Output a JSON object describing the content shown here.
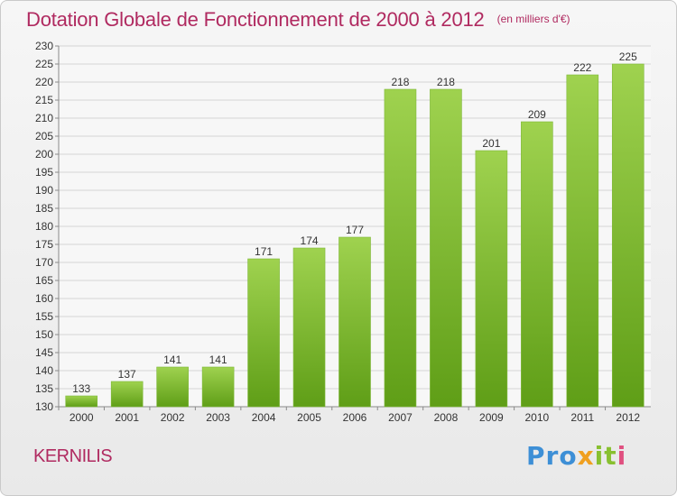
{
  "title": "Dotation Globale de Fonctionnement de 2000 à 2012",
  "unit_note": "(en milliers d'€)",
  "commune": "KERNILIS",
  "logo": {
    "text": "Proxiti",
    "parts": [
      "Pro",
      "x",
      "it",
      "i"
    ]
  },
  "colors": {
    "title": "#b02a60",
    "bar_top": "#9fd24f",
    "bar_bottom": "#5f9e17",
    "grid": "#d4d4d4",
    "axis": "#8a8a8a",
    "label": "#333333"
  },
  "chart_data": {
    "type": "bar",
    "title": "Dotation Globale de Fonctionnement de 2000 à 2012",
    "xlabel": "",
    "ylabel": "",
    "categories": [
      "2000",
      "2001",
      "2002",
      "2003",
      "2004",
      "2005",
      "2006",
      "2007",
      "2008",
      "2009",
      "2010",
      "2011",
      "2012"
    ],
    "values": [
      133,
      137,
      141,
      141,
      171,
      174,
      177,
      218,
      218,
      201,
      209,
      222,
      225
    ],
    "ylim": [
      130,
      230
    ],
    "ytick_step": 5,
    "grid": true,
    "data_labels": true
  }
}
